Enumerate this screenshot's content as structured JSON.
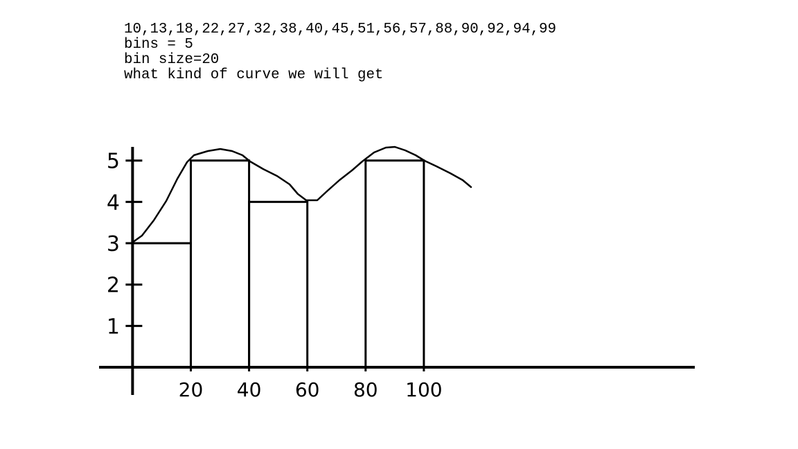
{
  "chart_data": {
    "type": "histogram",
    "annotations": [
      "10,13,18,22,27,32,38,40,45,51,56,57,88,90,92,94,99",
      "bins = 5",
      "bin size=20",
      "what kind of curve we will get"
    ],
    "bins": [
      0,
      20,
      40,
      60,
      80,
      100
    ],
    "counts": [
      3,
      5,
      4,
      0,
      5
    ],
    "color": "#000000",
    "xlim": [
      -11.5,
      193
    ],
    "xticks": [
      20,
      40,
      60,
      80,
      100
    ],
    "ylim": [
      -0.67,
      5.33
    ],
    "yticks": [
      1,
      2,
      3,
      4,
      5
    ]
  }
}
